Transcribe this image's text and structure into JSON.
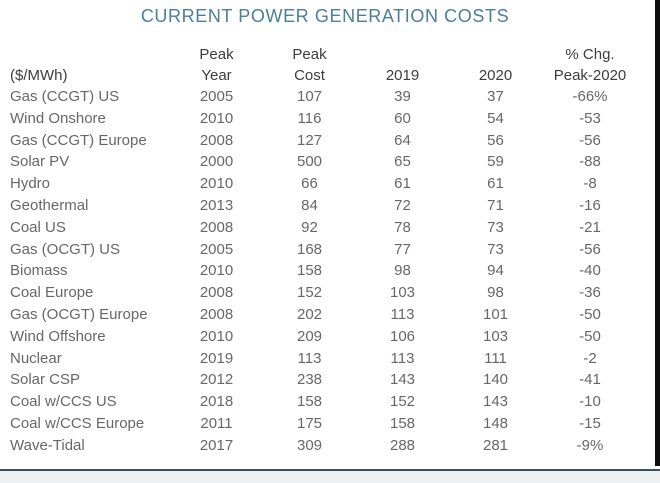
{
  "title": "CURRENT POWER GENERATION COSTS",
  "colors": {
    "title_accent": "#4A7E99",
    "header_text": "#3D3D3D",
    "body_text": "#676767",
    "bottom_rule": "#37545C",
    "bottom_band": "#EDF0F2",
    "right_border": "#0D0D0D",
    "background": "#FFFFFF"
  },
  "table": {
    "columns": [
      {
        "id": "technology",
        "line1": "",
        "line2": "($/MWh)"
      },
      {
        "id": "peak_year",
        "line1": "Peak",
        "line2": "Year"
      },
      {
        "id": "peak_cost",
        "line1": "Peak",
        "line2": "Cost"
      },
      {
        "id": "y2019",
        "line1": "",
        "line2": "2019"
      },
      {
        "id": "y2020",
        "line1": "",
        "line2": "2020"
      },
      {
        "id": "pct_change",
        "line1": "% Chg.",
        "line2": "Peak-2020"
      }
    ],
    "rows": [
      {
        "technology": "Gas (CCGT) US",
        "peak_year": "2005",
        "peak_cost": "107",
        "y2019": "39",
        "y2020": "37",
        "pct_change": "-66%"
      },
      {
        "technology": "Wind Onshore",
        "peak_year": "2010",
        "peak_cost": "116",
        "y2019": "60",
        "y2020": "54",
        "pct_change": "-53"
      },
      {
        "technology": "Gas (CCGT) Europe",
        "peak_year": "2008",
        "peak_cost": "127",
        "y2019": "64",
        "y2020": "56",
        "pct_change": "-56"
      },
      {
        "technology": "Solar PV",
        "peak_year": "2000",
        "peak_cost": "500",
        "y2019": "65",
        "y2020": "59",
        "pct_change": "-88"
      },
      {
        "technology": "Hydro",
        "peak_year": "2010",
        "peak_cost": "66",
        "y2019": "61",
        "y2020": "61",
        "pct_change": "-8"
      },
      {
        "technology": "Geothermal",
        "peak_year": "2013",
        "peak_cost": "84",
        "y2019": "72",
        "y2020": "71",
        "pct_change": "-16"
      },
      {
        "technology": "Coal US",
        "peak_year": "2008",
        "peak_cost": "92",
        "y2019": "78",
        "y2020": "73",
        "pct_change": "-21"
      },
      {
        "technology": "Gas (OCGT) US",
        "peak_year": "2005",
        "peak_cost": "168",
        "y2019": "77",
        "y2020": "73",
        "pct_change": "-56"
      },
      {
        "technology": "Biomass",
        "peak_year": "2010",
        "peak_cost": "158",
        "y2019": "98",
        "y2020": "94",
        "pct_change": "-40"
      },
      {
        "technology": "Coal Europe",
        "peak_year": "2008",
        "peak_cost": "152",
        "y2019": "103",
        "y2020": "98",
        "pct_change": "-36"
      },
      {
        "technology": "Gas (OCGT) Europe",
        "peak_year": "2008",
        "peak_cost": "202",
        "y2019": "113",
        "y2020": "101",
        "pct_change": "-50"
      },
      {
        "technology": "Wind Offshore",
        "peak_year": "2010",
        "peak_cost": "209",
        "y2019": "106",
        "y2020": "103",
        "pct_change": "-50"
      },
      {
        "technology": "Nuclear",
        "peak_year": "2019",
        "peak_cost": "113",
        "y2019": "113",
        "y2020": "111",
        "pct_change": "-2"
      },
      {
        "technology": "Solar CSP",
        "peak_year": "2012",
        "peak_cost": "238",
        "y2019": "143",
        "y2020": "140",
        "pct_change": "-41"
      },
      {
        "technology": "Coal w/CCS US",
        "peak_year": "2018",
        "peak_cost": "158",
        "y2019": "152",
        "y2020": "143",
        "pct_change": "-10"
      },
      {
        "technology": "Coal w/CCS Europe",
        "peak_year": "2011",
        "peak_cost": "175",
        "y2019": "158",
        "y2020": "148",
        "pct_change": "-15"
      },
      {
        "technology": "Wave-Tidal",
        "peak_year": "2017",
        "peak_cost": "309",
        "y2019": "288",
        "y2020": "281",
        "pct_change": "-9%"
      }
    ]
  },
  "chart_data": {
    "type": "table",
    "title": "CURRENT POWER GENERATION COSTS",
    "unit": "$/MWh",
    "columns": [
      "Technology ($/MWh)",
      "Peak Year",
      "Peak Cost",
      "2019",
      "2020",
      "% Chg. Peak-2020"
    ],
    "rows": [
      [
        "Gas (CCGT) US",
        2005,
        107,
        39,
        37,
        -66
      ],
      [
        "Wind Onshore",
        2010,
        116,
        60,
        54,
        -53
      ],
      [
        "Gas (CCGT) Europe",
        2008,
        127,
        64,
        56,
        -56
      ],
      [
        "Solar PV",
        2000,
        500,
        65,
        59,
        -88
      ],
      [
        "Hydro",
        2010,
        66,
        61,
        61,
        -8
      ],
      [
        "Geothermal",
        2013,
        84,
        72,
        71,
        -16
      ],
      [
        "Coal US",
        2008,
        92,
        78,
        73,
        -21
      ],
      [
        "Gas (OCGT) US",
        2005,
        168,
        77,
        73,
        -56
      ],
      [
        "Biomass",
        2010,
        158,
        98,
        94,
        -40
      ],
      [
        "Coal Europe",
        2008,
        152,
        103,
        98,
        -36
      ],
      [
        "Gas (OCGT) Europe",
        2008,
        202,
        113,
        101,
        -50
      ],
      [
        "Wind Offshore",
        2010,
        209,
        106,
        103,
        -50
      ],
      [
        "Nuclear",
        2019,
        113,
        113,
        111,
        -2
      ],
      [
        "Solar CSP",
        2012,
        238,
        143,
        140,
        -41
      ],
      [
        "Coal w/CCS US",
        2018,
        158,
        152,
        143,
        -10
      ],
      [
        "Coal w/CCS Europe",
        2011,
        175,
        158,
        148,
        -15
      ],
      [
        "Wave-Tidal",
        2017,
        309,
        288,
        281,
        -9
      ]
    ]
  }
}
